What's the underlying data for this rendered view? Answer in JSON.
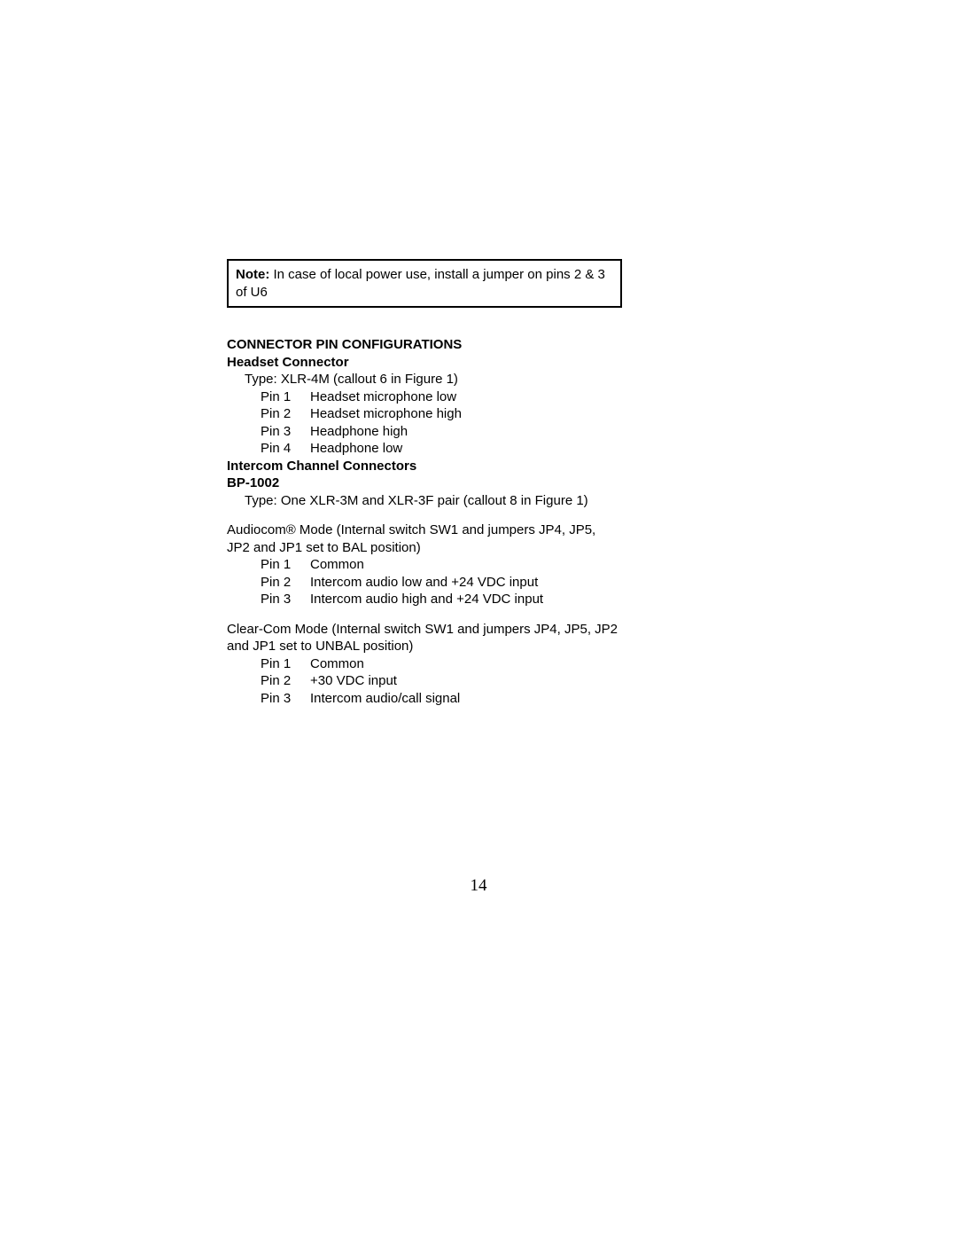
{
  "note": {
    "label": "Note:",
    "text": " In case of local power use, install a jumper on pins 2 & 3 of U6"
  },
  "section": {
    "heading": "CONNECTOR PIN CONFIGURATIONS",
    "headset": {
      "heading": "Headset Connector",
      "type": "Type: XLR-4M  (callout 6 in Figure 1)",
      "pins": [
        {
          "label": "Pin 1",
          "desc": "Headset microphone low"
        },
        {
          "label": "Pin 2",
          "desc": "Headset microphone high"
        },
        {
          "label": "Pin 3",
          "desc": "Headphone high"
        },
        {
          "label": "Pin 4",
          "desc": "Headphone low"
        }
      ]
    },
    "intercom": {
      "heading1": "Intercom Channel Connectors",
      "heading2": "BP-1002",
      "type": "Type: One XLR-3M and XLR-3F pair  (callout 8 in Figure 1)"
    },
    "audiocom": {
      "text": "Audiocom® Mode (Internal switch SW1 and jumpers JP4, JP5, JP2 and JP1 set to BAL position)",
      "pins": [
        {
          "label": "Pin 1",
          "desc": "Common"
        },
        {
          "label": "Pin 2",
          "desc": "Intercom audio low and +24 VDC input"
        },
        {
          "label": "Pin 3",
          "desc": "Intercom audio high and +24 VDC input"
        }
      ]
    },
    "clearcom": {
      "text": "Clear-Com Mode (Internal switch SW1 and jumpers JP4, JP5, JP2 and JP1 set to UNBAL position)",
      "pins": [
        {
          "label": "Pin 1",
          "desc": "Common"
        },
        {
          "label": "Pin 2",
          "desc": "+30 VDC input"
        },
        {
          "label": "Pin 3",
          "desc": "Intercom audio/call signal"
        }
      ]
    }
  },
  "pageNumber": "14"
}
